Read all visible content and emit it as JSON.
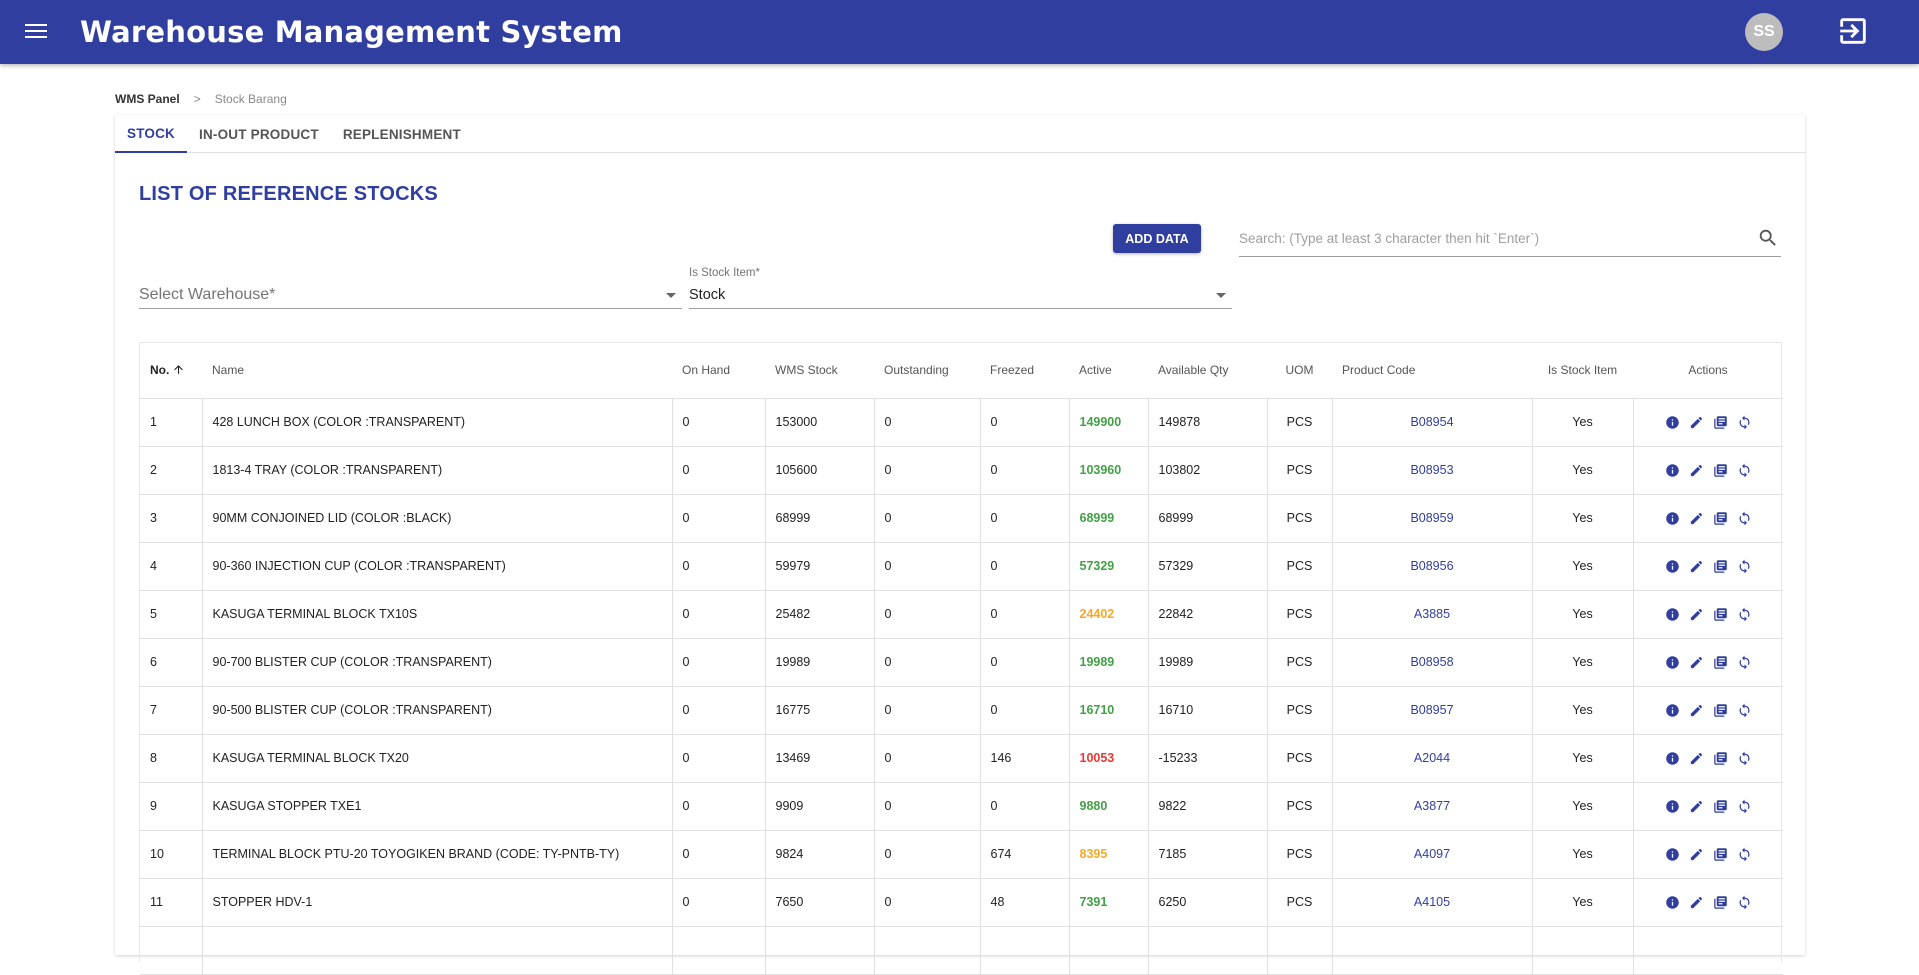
{
  "app": {
    "title": "Warehouse Management System",
    "avatar_initials": "SS",
    "brand_color": "#303f9f"
  },
  "breadcrumb": {
    "root": "WMS Panel",
    "separator": ">",
    "current": "Stock Barang"
  },
  "tabs": [
    {
      "label": "STOCK",
      "active": true
    },
    {
      "label": "IN-OUT PRODUCT",
      "active": false
    },
    {
      "label": "REPLENISHMENT",
      "active": false
    }
  ],
  "list_title": "LIST OF REFERENCE STOCKS",
  "toolbar": {
    "add_label": "ADD DATA",
    "search_placeholder": "Search: (Type at least 3 character then hit `Enter`)"
  },
  "filters": {
    "warehouse": {
      "placeholder": "Select Warehouse*"
    },
    "stock_item": {
      "label": "Is Stock Item*",
      "value": "Stock"
    }
  },
  "table": {
    "headers": [
      "No.",
      "Name",
      "On Hand",
      "WMS Stock",
      "Outstanding",
      "Freezed",
      "Active",
      "Available Qty",
      "UOM",
      "Product Code",
      "Is Stock Item",
      "Actions"
    ],
    "active_colors": {
      "green": "#43a047",
      "orange": "#f9a825",
      "red": "#e53935"
    },
    "rows": [
      {
        "no": "1",
        "name": "428 LUNCH BOX (COLOR :TRANSPARENT)",
        "on_hand": "0",
        "wms_stock": "153000",
        "outstanding": "0",
        "freezed": "0",
        "active": "149900",
        "active_color": "#43a047",
        "available": "149878",
        "uom": "PCS",
        "code": "B08954",
        "is_stock": "Yes"
      },
      {
        "no": "2",
        "name": "1813-4 TRAY (COLOR :TRANSPARENT)",
        "on_hand": "0",
        "wms_stock": "105600",
        "outstanding": "0",
        "freezed": "0",
        "active": "103960",
        "active_color": "#43a047",
        "available": "103802",
        "uom": "PCS",
        "code": "B08953",
        "is_stock": "Yes"
      },
      {
        "no": "3",
        "name": "90MM CONJOINED LID (COLOR :BLACK)",
        "on_hand": "0",
        "wms_stock": "68999",
        "outstanding": "0",
        "freezed": "0",
        "active": "68999",
        "active_color": "#43a047",
        "available": "68999",
        "uom": "PCS",
        "code": "B08959",
        "is_stock": "Yes"
      },
      {
        "no": "4",
        "name": "90-360 INJECTION CUP (COLOR :TRANSPARENT)",
        "on_hand": "0",
        "wms_stock": "59979",
        "outstanding": "0",
        "freezed": "0",
        "active": "57329",
        "active_color": "#43a047",
        "available": "57329",
        "uom": "PCS",
        "code": "B08956",
        "is_stock": "Yes"
      },
      {
        "no": "5",
        "name": "KASUGA TERMINAL BLOCK TX10S",
        "on_hand": "0",
        "wms_stock": "25482",
        "outstanding": "0",
        "freezed": "0",
        "active": "24402",
        "active_color": "#f9a825",
        "available": "22842",
        "uom": "PCS",
        "code": "A3885",
        "is_stock": "Yes"
      },
      {
        "no": "6",
        "name": "90-700 BLISTER CUP (COLOR :TRANSPARENT)",
        "on_hand": "0",
        "wms_stock": "19989",
        "outstanding": "0",
        "freezed": "0",
        "active": "19989",
        "active_color": "#43a047",
        "available": "19989",
        "uom": "PCS",
        "code": "B08958",
        "is_stock": "Yes"
      },
      {
        "no": "7",
        "name": "90-500 BLISTER CUP (COLOR :TRANSPARENT)",
        "on_hand": "0",
        "wms_stock": "16775",
        "outstanding": "0",
        "freezed": "0",
        "active": "16710",
        "active_color": "#43a047",
        "available": "16710",
        "uom": "PCS",
        "code": "B08957",
        "is_stock": "Yes"
      },
      {
        "no": "8",
        "name": "KASUGA TERMINAL BLOCK TX20",
        "on_hand": "0",
        "wms_stock": "13469",
        "outstanding": "0",
        "freezed": "146",
        "active": "10053",
        "active_color": "#e53935",
        "available": "-15233",
        "uom": "PCS",
        "code": "A2044",
        "is_stock": "Yes"
      },
      {
        "no": "9",
        "name": "KASUGA STOPPER TXE1",
        "on_hand": "0",
        "wms_stock": "9909",
        "outstanding": "0",
        "freezed": "0",
        "active": "9880",
        "active_color": "#43a047",
        "available": "9822",
        "uom": "PCS",
        "code": "A3877",
        "is_stock": "Yes"
      },
      {
        "no": "10",
        "name": "TERMINAL BLOCK PTU-20 TOYOGIKEN BRAND (CODE: TY-PNTB-TY)",
        "on_hand": "0",
        "wms_stock": "9824",
        "outstanding": "0",
        "freezed": "674",
        "active": "8395",
        "active_color": "#f9a825",
        "available": "7185",
        "uom": "PCS",
        "code": "A4097",
        "is_stock": "Yes"
      },
      {
        "no": "11",
        "name": "STOPPER HDV-1",
        "on_hand": "0",
        "wms_stock": "7650",
        "outstanding": "0",
        "freezed": "48",
        "active": "7391",
        "active_color": "#43a047",
        "available": "6250",
        "uom": "PCS",
        "code": "A4105",
        "is_stock": "Yes"
      },
      {
        "no": "",
        "name": "",
        "on_hand": "",
        "wms_stock": "",
        "outstanding": "",
        "freezed": "",
        "active": "",
        "active_color": "#43a047",
        "available": "",
        "uom": "",
        "code": "",
        "is_stock": ""
      }
    ],
    "row_actions": [
      "info-icon",
      "edit-icon",
      "library-books-icon",
      "sync-icon"
    ]
  }
}
